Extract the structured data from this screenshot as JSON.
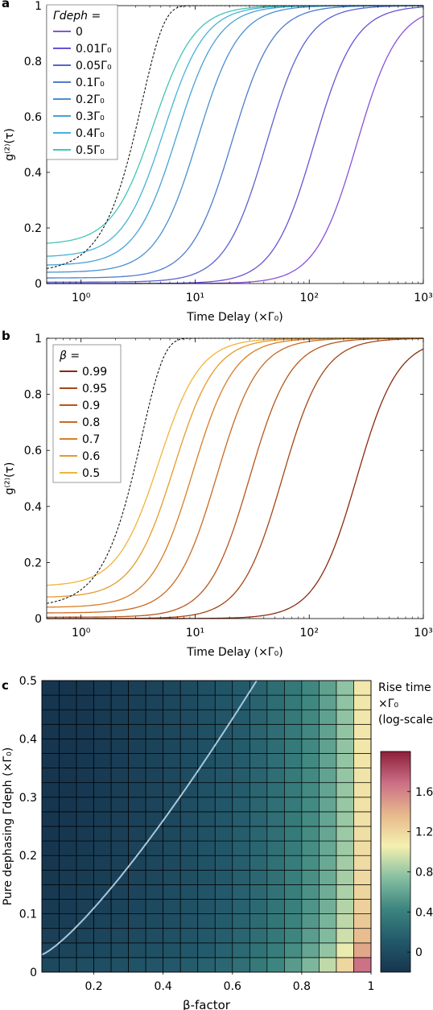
{
  "chart_data": [
    {
      "type": "line",
      "panel_label": "a",
      "xlabel": "Time Delay (×Γ₀)",
      "ylabel": "g⁽²⁾(τ)",
      "x_scale": "log",
      "xlim": [
        0.5,
        1000
      ],
      "ylim": [
        0,
        1
      ],
      "x_ticks": [
        "10⁰",
        "10¹",
        "10²",
        "10³"
      ],
      "y_ticks": [
        "0",
        "0.2",
        "0.4",
        "0.6",
        "0.8",
        "1"
      ],
      "legend_title": "Γdeph =",
      "legend_position": "top-left",
      "reference_curve": "dashed black",
      "series": [
        {
          "name": "0",
          "color": "#8a52d9",
          "half_x": 260,
          "start_y": 0.0
        },
        {
          "name": "0.01Γ₀",
          "color": "#6a52d4",
          "half_x": 110,
          "start_y": 0.0
        },
        {
          "name": "0.05Γ₀",
          "color": "#5a63d0",
          "half_x": 42,
          "start_y": 0.005
        },
        {
          "name": "0.1Γ₀",
          "color": "#4e7cce",
          "half_x": 21,
          "start_y": 0.02
        },
        {
          "name": "0.2Γ₀",
          "color": "#4a90d0",
          "half_x": 10.5,
          "start_y": 0.04
        },
        {
          "name": "0.3Γ₀",
          "color": "#48a2d6",
          "half_x": 6.9,
          "start_y": 0.065
        },
        {
          "name": "0.4Γ₀",
          "color": "#45b3d8",
          "half_x": 5.3,
          "start_y": 0.095
        },
        {
          "name": "0.5Γ₀",
          "color": "#45c4b4",
          "half_x": 4.3,
          "start_y": 0.14
        }
      ]
    },
    {
      "type": "line",
      "panel_label": "b",
      "xlabel": "Time Delay (×Γ₀)",
      "ylabel": "g⁽²⁾(τ)",
      "x_scale": "log",
      "xlim": [
        0.5,
        1000
      ],
      "ylim": [
        0,
        1
      ],
      "x_ticks": [
        "10⁰",
        "10¹",
        "10²",
        "10³"
      ],
      "y_ticks": [
        "0",
        "0.2",
        "0.4",
        "0.6",
        "0.8",
        "1"
      ],
      "legend_title": "β =",
      "legend_position": "top-left",
      "reference_curve": "dashed black",
      "series": [
        {
          "name": "0.99",
          "color": "#8b2a12",
          "half_x": 260,
          "start_y": 0.0
        },
        {
          "name": "0.95",
          "color": "#a64716",
          "half_x": 58,
          "start_y": 0.0
        },
        {
          "name": "0.9",
          "color": "#b8561b",
          "half_x": 30,
          "start_y": 0.005
        },
        {
          "name": "0.8",
          "color": "#c96a22",
          "half_x": 15.5,
          "start_y": 0.02
        },
        {
          "name": "0.7",
          "color": "#d87e26",
          "half_x": 9.5,
          "start_y": 0.04
        },
        {
          "name": "0.6",
          "color": "#e69a2d",
          "half_x": 6.5,
          "start_y": 0.075
        },
        {
          "name": "0.5",
          "color": "#f0b43a",
          "half_x": 4.8,
          "start_y": 0.115
        }
      ]
    },
    {
      "type": "heatmap",
      "panel_label": "c",
      "xlabel": "β-factor",
      "ylabel": "Pure dephasing Γdeph (×Γ₀)",
      "xlim": [
        0.05,
        1
      ],
      "ylim": [
        0,
        0.5
      ],
      "x_ticks": [
        "0.2",
        "0.4",
        "0.6",
        "0.8",
        "1"
      ],
      "y_ticks": [
        "0",
        "0.1",
        "0.2",
        "0.3",
        "0.4",
        "0.5"
      ],
      "grid": {
        "columns": 19,
        "rows": 20
      },
      "colorbar_title": [
        "Rise time",
        "×Γ₀",
        "(log-scale)"
      ],
      "colorbar_range": [
        -0.2,
        2.0
      ],
      "colorbar_ticks": [
        "0",
        "0.4",
        "0.8",
        "1.2",
        "1.6"
      ],
      "colormap": [
        "#16354f",
        "#23596b",
        "#3c857f",
        "#86bfa2",
        "#f4f0b0",
        "#e7b88c",
        "#cb6f86",
        "#8d1f3a"
      ],
      "contour": "light blue curve from (0.05, 0.03) to (0.67, 0.5)"
    }
  ]
}
